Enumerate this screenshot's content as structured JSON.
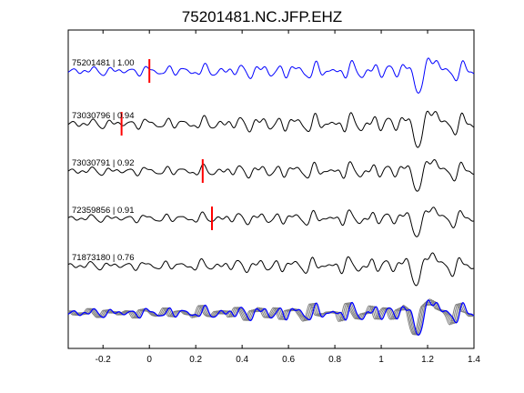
{
  "chart_data": {
    "type": "line",
    "title": "75201481.NC.JFP.EHZ",
    "xlabel": "",
    "ylabel": "",
    "xlim": [
      -0.35,
      1.4
    ],
    "xticks": [
      -0.2,
      0,
      0.2,
      0.4,
      0.6,
      0.8,
      1,
      1.2,
      1.4
    ],
    "xtick_labels": [
      "-0.2",
      "0",
      "0.2",
      "0.4",
      "0.6",
      "0.8",
      "1",
      "1.2",
      "1.4"
    ],
    "grid": false,
    "colors": {
      "primary": "#0000ff",
      "correlated": "#000000",
      "overlay": "#808080",
      "pick": "#ff0000"
    },
    "series": [
      {
        "event_id": "75201481",
        "label": "75201481 | 1.00",
        "color": "#0000ff",
        "pick_time": 0.0,
        "note": "master trace"
      },
      {
        "event_id": "73030796",
        "label": "73030796 | 0.94",
        "color": "#000000",
        "pick_time": -0.12
      },
      {
        "event_id": "73030791",
        "label": "73030791 | 0.92",
        "color": "#000000",
        "pick_time": 0.23
      },
      {
        "event_id": "72359856",
        "label": "72359856 | 0.91",
        "color": "#000000",
        "pick_time": 0.27
      },
      {
        "event_id": "71873180",
        "label": "71873180 | 0.76",
        "color": "#000000",
        "pick_time": null
      }
    ],
    "overlay": {
      "description": "stack of all traces",
      "color_master": "#0000ff",
      "color_others": "#808080"
    }
  }
}
